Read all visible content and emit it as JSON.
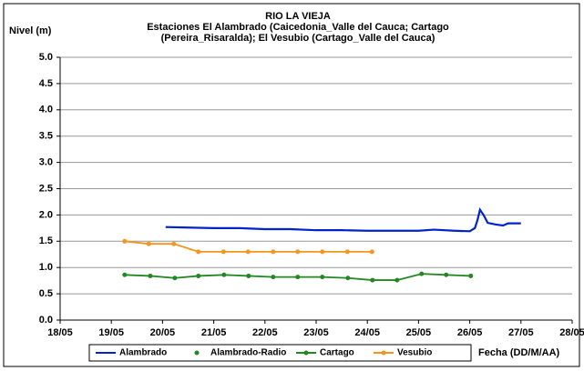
{
  "chart_data": {
    "type": "line",
    "title": "RIO LA VIEJA",
    "subtitle": [
      "Estaciones El Alambrado (Caicedonia_Valle del Cauca; Cartago",
      "(Pereira_Risaralda);  El Vesubio (Cartago_Valle del Cauca)"
    ],
    "y_label": "Nivel (m)",
    "x_label": "Fecha (DD/M/AA)",
    "xlim": [
      18,
      28
    ],
    "xticks": [
      {
        "value": 18,
        "label": "18/05"
      },
      {
        "value": 19,
        "label": "19/05"
      },
      {
        "value": 20,
        "label": "20/05"
      },
      {
        "value": 21,
        "label": "21/05"
      },
      {
        "value": 22,
        "label": "22/05"
      },
      {
        "value": 23,
        "label": "23/05"
      },
      {
        "value": 24,
        "label": "24/05"
      },
      {
        "value": 25,
        "label": "25/05"
      },
      {
        "value": 26,
        "label": "26/05"
      },
      {
        "value": 27,
        "label": "27/05"
      },
      {
        "value": 28,
        "label": "28/05"
      }
    ],
    "ylim": [
      0,
      5
    ],
    "yticks": [
      {
        "value": 0,
        "label": "0.0"
      },
      0.5,
      {
        "value": 1,
        "label": "1.0"
      },
      1.5,
      {
        "value": 2,
        "label": "2.0"
      },
      2.5,
      {
        "value": 3,
        "label": "3.0"
      },
      3.5,
      {
        "value": 4,
        "label": "4.0"
      },
      4.5,
      {
        "value": 5,
        "label": "5.0"
      }
    ],
    "grid": true,
    "legend": "bottom",
    "series": [
      {
        "name": "Alambrado",
        "color": "#0022cc",
        "marker": false,
        "x": [
          20.06,
          20.5,
          21,
          21.5,
          22,
          22.5,
          23,
          23.5,
          24,
          24.5,
          25,
          25.3,
          25.7,
          26.0,
          26.05,
          26.1,
          26.15,
          26.2,
          26.27,
          26.35,
          26.5,
          26.65,
          26.75,
          27.0
        ],
        "values": [
          1.77,
          1.76,
          1.75,
          1.75,
          1.73,
          1.73,
          1.71,
          1.71,
          1.7,
          1.7,
          1.7,
          1.72,
          1.7,
          1.69,
          1.72,
          1.75,
          1.9,
          2.1,
          2.0,
          1.85,
          1.82,
          1.8,
          1.84,
          1.84
        ]
      },
      {
        "name": "Alambrado-Radio",
        "color": "#228822",
        "marker": true,
        "line": false,
        "x": [],
        "values": []
      },
      {
        "name": "Cartago",
        "color": "#228822",
        "marker": true,
        "x": [
          19.26,
          19.76,
          20.24,
          20.7,
          21.2,
          21.68,
          22.16,
          22.64,
          23.12,
          23.62,
          24.1,
          24.58,
          25.06,
          25.54,
          26.02
        ],
        "values": [
          0.86,
          0.84,
          0.8,
          0.84,
          0.86,
          0.84,
          0.82,
          0.82,
          0.82,
          0.8,
          0.76,
          0.76,
          0.88,
          0.86,
          0.84
        ]
      },
      {
        "name": "Vesubio",
        "color": "#f7941d",
        "marker": true,
        "x": [
          19.26,
          19.73,
          20.22,
          20.7,
          21.19,
          21.67,
          22.16,
          22.64,
          23.12,
          23.61,
          24.09
        ],
        "values": [
          1.5,
          1.45,
          1.45,
          1.3,
          1.3,
          1.3,
          1.3,
          1.3,
          1.3,
          1.3,
          1.3
        ]
      }
    ]
  }
}
